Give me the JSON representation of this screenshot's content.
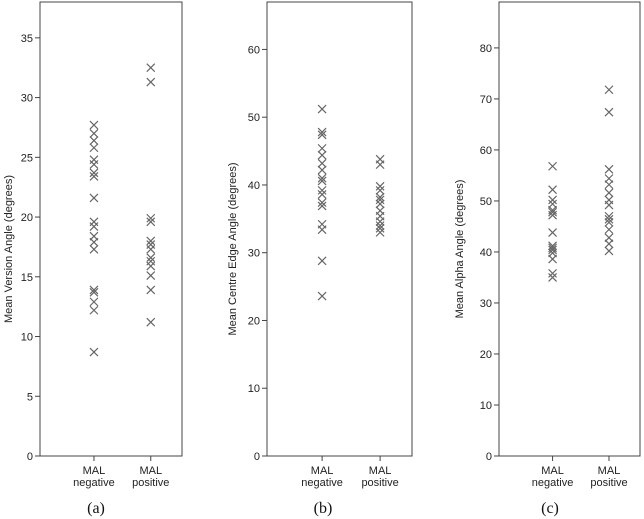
{
  "chart_data": [
    {
      "type": "scatter",
      "caption": "(a)",
      "ylabel": "Mean Version Angle (degrees)",
      "categories": [
        [
          "MAL",
          "negative"
        ],
        [
          "MAL",
          "positive"
        ]
      ],
      "ylim": [
        0,
        38
      ],
      "yticks": [
        0,
        5,
        10,
        15,
        20,
        25,
        30,
        35
      ],
      "series": [
        {
          "values": [
            27.7,
            27.0,
            26.4,
            25.8,
            24.8,
            24.4,
            23.7,
            23.4,
            21.6,
            19.6,
            19.2,
            18.4,
            17.9,
            17.3,
            13.9,
            13.7,
            12.9,
            12.2,
            8.7
          ]
        },
        {
          "values": [
            32.5,
            31.3,
            19.9,
            19.6,
            18.0,
            17.7,
            17.3,
            16.6,
            16.3,
            15.9,
            15.1,
            13.9,
            11.2
          ]
        }
      ],
      "grid": false
    },
    {
      "type": "scatter",
      "caption": "(b)",
      "ylabel": "Mean Centre Edge Angle (degrees)",
      "categories": [
        [
          "MAL",
          "negative"
        ],
        [
          "MAL",
          "positive"
        ]
      ],
      "ylim": [
        0,
        67
      ],
      "yticks": [
        0,
        10,
        20,
        30,
        40,
        50,
        60
      ],
      "series": [
        {
          "values": [
            51.2,
            47.8,
            47.4,
            45.4,
            44.4,
            43.2,
            42.2,
            41.0,
            40.6,
            39.2,
            38.6,
            37.4,
            36.9,
            34.2,
            33.4,
            28.8,
            23.6
          ]
        },
        {
          "values": [
            43.8,
            43.0,
            39.8,
            39.2,
            38.2,
            37.8,
            37.2,
            36.2,
            35.4,
            34.6,
            34.0,
            33.6,
            33.0
          ]
        }
      ],
      "grid": false
    },
    {
      "type": "scatter",
      "caption": "(c)",
      "ylabel": "Mean Alpha Angle (degrees)",
      "categories": [
        [
          "MAL",
          "negative"
        ],
        [
          "MAL",
          "positive"
        ]
      ],
      "ylim": [
        0,
        89
      ],
      "yticks": [
        0,
        10,
        20,
        30,
        40,
        50,
        60,
        70,
        80
      ],
      "series": [
        {
          "values": [
            56.8,
            52.2,
            50.2,
            49.4,
            48.2,
            47.8,
            47.2,
            43.8,
            41.2,
            40.8,
            40.4,
            39.8,
            38.6,
            35.8,
            35.0
          ]
        },
        {
          "values": [
            71.8,
            67.4,
            56.2,
            54.4,
            53.2,
            51.6,
            50.2,
            49.2,
            47.0,
            46.4,
            45.8,
            44.4,
            42.8,
            41.6,
            40.2
          ]
        }
      ],
      "grid": false
    }
  ]
}
